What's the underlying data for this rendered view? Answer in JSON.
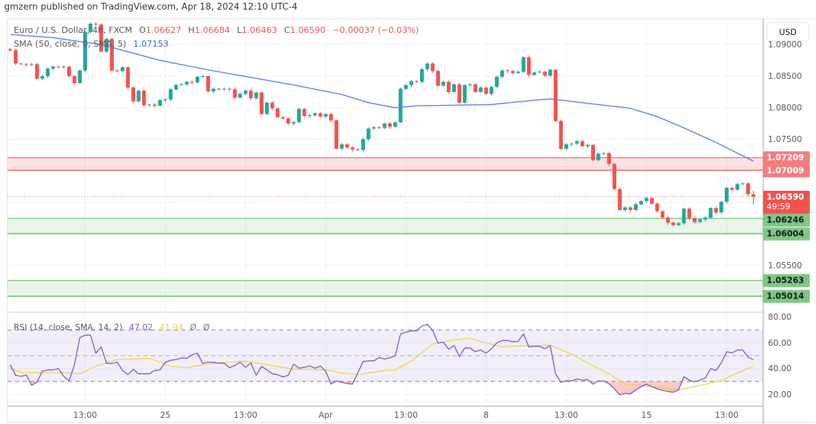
{
  "publisher": "gmzern published on TradingView.com, Apr 18, 2024 12:10 UTC-4",
  "legend": {
    "symbol": "Euro / U.S. Dollar, 4h, FXCM",
    "open_key": "O",
    "open": "1.06627",
    "high_key": "H",
    "high": "1.06684",
    "low_key": "L",
    "low": "1.06463",
    "close_key": "C",
    "close": "1.06590",
    "change": "−0.00037 (−0.03%)",
    "sma_label": "SMA (50, close, 0, SMA, 5)",
    "sma_value": "1.07153",
    "rsi_label": "RSI (14, close, SMA, 14, 2)",
    "rsi_value": "47.02",
    "rsi_sma_value": "41.94",
    "rsi_na1": "Ø",
    "rsi_na2": "Ø"
  },
  "currency_button": "USD",
  "countdown": "49:59",
  "colors": {
    "up": "#26a69a",
    "down": "#ef5350",
    "sma": "#2962ff",
    "rsi": "#7e57c2",
    "rsi_sma": "#f3d53c",
    "resistance_zone": "#f77c80",
    "support_zone": "#81c784"
  },
  "chart_data": [
    {
      "type": "candlestick",
      "title": "Euro / U.S. Dollar, 4h, FXCM",
      "first_open": 1.0893,
      "last_bar": {
        "open": 1.06627,
        "high": 1.06684,
        "low": 1.06463,
        "close": 1.0659
      },
      "closes": [
        1.0891,
        1.087,
        1.0869,
        1.0868,
        1.0869,
        1.0846,
        1.085,
        1.0862,
        1.0865,
        1.0864,
        1.0865,
        1.085,
        1.0839,
        1.0859,
        1.092,
        1.0933,
        1.0932,
        1.0889,
        1.0909,
        1.0859,
        1.0858,
        1.0864,
        1.0832,
        1.081,
        1.0827,
        1.0804,
        1.0805,
        1.0803,
        1.0812,
        1.0813,
        1.0829,
        1.0836,
        1.0837,
        1.0841,
        1.084,
        1.0849,
        1.085,
        1.0826,
        1.083,
        1.0829,
        1.083,
        1.0829,
        1.0816,
        1.0822,
        1.0827,
        1.0815,
        1.0824,
        1.079,
        1.0808,
        1.0799,
        1.0785,
        1.0783,
        1.0775,
        1.0777,
        1.0798,
        1.0787,
        1.0788,
        1.0791,
        1.0786,
        1.079,
        1.078,
        1.0735,
        1.0742,
        1.0737,
        1.0734,
        1.0733,
        1.075,
        1.0767,
        1.0769,
        1.0768,
        1.0775,
        1.077,
        1.0777,
        1.083,
        1.0836,
        1.0842,
        1.0841,
        1.0861,
        1.087,
        1.0858,
        1.0835,
        1.0841,
        1.0825,
        1.0837,
        1.0808,
        1.0836,
        1.0837,
        1.0825,
        1.0832,
        1.0822,
        1.0833,
        1.0849,
        1.0859,
        1.0858,
        1.0855,
        1.0857,
        1.088,
        1.0852,
        1.0856,
        1.0857,
        1.0851,
        1.086,
        1.0779,
        1.0735,
        1.0742,
        1.0743,
        1.0747,
        1.0739,
        1.0741,
        1.0717,
        1.0727,
        1.0728,
        1.0711,
        1.0671,
        1.0638,
        1.0642,
        1.0638,
        1.0647,
        1.0652,
        1.0657,
        1.0648,
        1.0636,
        1.0626,
        1.0618,
        1.0614,
        1.0617,
        1.064,
        1.0625,
        1.0619,
        1.0623,
        1.0626,
        1.0641,
        1.0634,
        1.0651,
        1.0673,
        1.067,
        1.0679,
        1.068,
        1.0663,
        1.0659
      ],
      "sma_50": [
        [
          0,
          1.0916
        ],
        [
          8,
          1.0911
        ],
        [
          17,
          1.09
        ],
        [
          28,
          1.0875
        ],
        [
          37,
          1.086
        ],
        [
          43,
          1.0851
        ],
        [
          53,
          1.0836
        ],
        [
          62,
          1.0821
        ],
        [
          67,
          1.0808
        ],
        [
          72,
          1.08
        ],
        [
          76,
          1.0803
        ],
        [
          83,
          1.0804
        ],
        [
          90,
          1.0805
        ],
        [
          97,
          1.0811
        ],
        [
          101,
          1.0814
        ],
        [
          106,
          1.0809
        ],
        [
          111,
          1.0804
        ],
        [
          116,
          1.0799
        ],
        [
          121,
          1.0786
        ],
        [
          126,
          1.0768
        ],
        [
          132,
          1.0745
        ],
        [
          139,
          1.07153
        ]
      ],
      "zones": [
        {
          "kind": "resistance",
          "top": 1.07209,
          "bottom": 1.07009,
          "top_label": "1.07209",
          "bottom_label": "1.07009"
        },
        {
          "kind": "support",
          "top": 1.06246,
          "bottom": 1.06004,
          "top_label": "1.06246",
          "bottom_label": "1.06004"
        },
        {
          "kind": "support",
          "top": 1.05263,
          "bottom": 1.05014,
          "top_label": "1.05263",
          "bottom_label": "1.05014"
        }
      ],
      "current_price": 1.0659,
      "current_price_label": "1.06590",
      "y_ticks": [
        {
          "value": 1.09,
          "label": "1.09000"
        },
        {
          "value": 1.085,
          "label": "1.08500"
        },
        {
          "value": 1.08,
          "label": "1.08000"
        },
        {
          "value": 1.075,
          "label": "1.07500"
        },
        {
          "value": 1.055,
          "label": "1.05500"
        }
      ],
      "x_ticks": [
        {
          "bar": 14,
          "label": "13:00"
        },
        {
          "bar": 29,
          "label": "25"
        },
        {
          "bar": 44,
          "label": "13:00"
        },
        {
          "bar": 59,
          "label": "Apr"
        },
        {
          "bar": 74,
          "label": "13:00"
        },
        {
          "bar": 89,
          "label": "8"
        },
        {
          "bar": 104,
          "label": "13:00"
        },
        {
          "bar": 119,
          "label": "15"
        },
        {
          "bar": 134,
          "label": "13:00"
        }
      ],
      "grid": true
    },
    {
      "type": "line",
      "title": "RSI (14, close, SMA, 14, 2)",
      "ylim": [
        15,
        85
      ],
      "levels": [
        70,
        50,
        30
      ],
      "rsi": [
        43,
        34.8,
        34,
        35,
        27,
        29.5,
        38,
        39,
        39,
        40,
        34,
        30.5,
        43,
        64,
        66,
        66,
        52,
        56.8,
        44.2,
        44,
        45,
        38.5,
        35.3,
        39.5,
        36,
        36,
        36,
        38.5,
        39,
        44.9,
        46.5,
        47,
        48.3,
        48,
        50.7,
        52,
        44,
        45,
        44.9,
        44.2,
        44.2,
        40.7,
        42.4,
        45,
        41,
        44.4,
        34.8,
        41.8,
        39,
        36,
        35.3,
        33.5,
        34.8,
        43.5,
        40.3,
        41,
        42,
        40.3,
        42,
        38,
        27.9,
        30.5,
        29.3,
        28.4,
        27.9,
        36.7,
        45.5,
        46,
        46,
        48.5,
        47.4,
        48.5,
        50,
        67,
        68.3,
        69.4,
        69.4,
        73.2,
        74.4,
        69.6,
        59.9,
        60.5,
        55,
        58,
        49.3,
        56,
        56,
        53.2,
        54.5,
        52,
        55.3,
        60,
        61.8,
        61.8,
        60.9,
        61.3,
        67,
        56.8,
        57.3,
        57.3,
        55.5,
        57.8,
        35.9,
        29.3,
        30.5,
        30.5,
        31.9,
        31,
        31.4,
        27.9,
        30.5,
        30.2,
        28.2,
        24.1,
        19.5,
        20.7,
        20.4,
        23.4,
        26,
        27.9,
        26,
        24.3,
        23,
        22.2,
        21.6,
        23.4,
        33.7,
        31,
        29.7,
        31,
        32.8,
        40,
        38.5,
        44.5,
        53.1,
        52.3,
        54.5,
        54.5,
        48.8,
        47.02
      ],
      "rsi_sma": [
        [
          0,
          40.3
        ],
        [
          2,
          37.1
        ],
        [
          7,
          36.7
        ],
        [
          11,
          36.7
        ],
        [
          13,
          35.9
        ],
        [
          16,
          41.8
        ],
        [
          20,
          47.1
        ],
        [
          23,
          47.5
        ],
        [
          26,
          47.8
        ],
        [
          27,
          46.6
        ],
        [
          30,
          41.8
        ],
        [
          33,
          40.7
        ],
        [
          37,
          43.6
        ],
        [
          40,
          44.9
        ],
        [
          44,
          45.8
        ],
        [
          48,
          43.1
        ],
        [
          53,
          39.6
        ],
        [
          59,
          39
        ],
        [
          62,
          36.7
        ],
        [
          65,
          35.3
        ],
        [
          70,
          38.5
        ],
        [
          72,
          39
        ],
        [
          75,
          45.8
        ],
        [
          79,
          59.1
        ],
        [
          83,
          62.3
        ],
        [
          86,
          63.6
        ],
        [
          89,
          60
        ],
        [
          92,
          56.8
        ],
        [
          96,
          57.8
        ],
        [
          101,
          58.2
        ],
        [
          105,
          51.1
        ],
        [
          110,
          40
        ],
        [
          112,
          35.9
        ],
        [
          115,
          27.9
        ],
        [
          117,
          27.1
        ],
        [
          120,
          26.1
        ],
        [
          125,
          23.4
        ],
        [
          129,
          27
        ],
        [
          133,
          30.5
        ],
        [
          136,
          36.7
        ],
        [
          139,
          41.94
        ]
      ],
      "y_ticks": [
        {
          "value": 80,
          "label": "80.00"
        },
        {
          "value": 60,
          "label": "60.00"
        },
        {
          "value": 40,
          "label": "40.00"
        },
        {
          "value": 20,
          "label": "20.00"
        }
      ]
    }
  ]
}
